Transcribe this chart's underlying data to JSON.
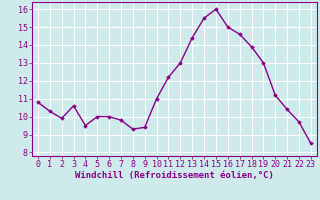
{
  "x": [
    0,
    1,
    2,
    3,
    4,
    5,
    6,
    7,
    8,
    9,
    10,
    11,
    12,
    13,
    14,
    15,
    16,
    17,
    18,
    19,
    20,
    21,
    22,
    23
  ],
  "y": [
    10.8,
    10.3,
    9.9,
    10.6,
    9.5,
    10.0,
    10.0,
    9.8,
    9.3,
    9.4,
    11.0,
    12.2,
    13.0,
    14.4,
    15.5,
    16.0,
    15.0,
    14.6,
    13.9,
    13.0,
    11.2,
    10.4,
    9.7,
    8.5
  ],
  "line_color": "#880088",
  "marker": "D",
  "markersize": 1.8,
  "linewidth": 1.0,
  "xlabel": "Windchill (Refroidissement éolien,°C)",
  "xlim": [
    -0.5,
    23.5
  ],
  "ylim": [
    7.8,
    16.4
  ],
  "yticks": [
    8,
    9,
    10,
    11,
    12,
    13,
    14,
    15,
    16
  ],
  "xticks": [
    0,
    1,
    2,
    3,
    4,
    5,
    6,
    7,
    8,
    9,
    10,
    11,
    12,
    13,
    14,
    15,
    16,
    17,
    18,
    19,
    20,
    21,
    22,
    23
  ],
  "bg_color": "#ceeaea",
  "grid_color": "#b8d8d8",
  "spine_color": "#880088",
  "tick_color": "#880088",
  "label_color": "#880088",
  "xlabel_fontsize": 6.5,
  "tick_fontsize": 6.0
}
